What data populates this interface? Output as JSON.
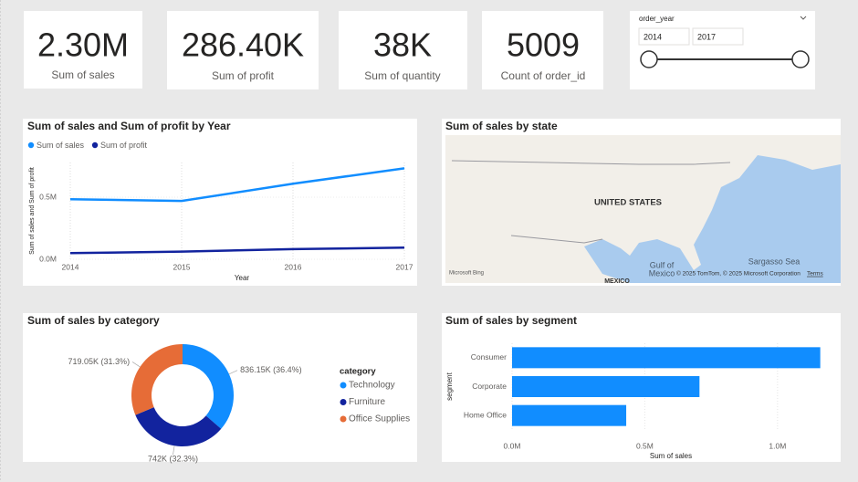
{
  "cards": [
    {
      "value": "2.30M",
      "label": "Sum of sales"
    },
    {
      "value": "286.40K",
      "label": "Sum of profit"
    },
    {
      "value": "38K",
      "label": "Sum of quantity"
    },
    {
      "value": "5009",
      "label": "Count of order_id"
    }
  ],
  "slicer": {
    "title": "order_year",
    "from": "2014",
    "to": "2017"
  },
  "map": {
    "title": "Sum of sales by state",
    "labels": [
      "UNITED STATES",
      "Gulf of",
      "Mexico",
      "Sargasso Sea",
      "MEXICO"
    ],
    "provider": "Microsoft Bing",
    "attribution": "© 2025 TomTom, © 2025 Microsoft Corporation",
    "terms": "Terms"
  },
  "chart_data": [
    {
      "type": "line",
      "title": "Sum of sales and Sum of profit by Year",
      "x": [
        2014,
        2015,
        2016,
        2017
      ],
      "series": [
        {
          "name": "Sum of sales",
          "color": "#118DFF",
          "values": [
            484000,
            470000,
            609000,
            733000
          ]
        },
        {
          "name": "Sum of profit",
          "color": "#12239E",
          "values": [
            49500,
            61600,
            81800,
            93400
          ]
        }
      ],
      "xlim": [
        2014,
        2017
      ],
      "xticks": [
        2014,
        2015,
        2016,
        2017
      ],
      "ylim": [
        0,
        780000
      ],
      "yticks": [
        {
          "value": 0,
          "label": "0.0M"
        },
        {
          "value": 500000,
          "label": "0.5M"
        }
      ],
      "xlabel": "Year",
      "ylabel": "Sum of sales and Sum of profit",
      "grid": true,
      "legend": "top"
    },
    {
      "type": "pie",
      "title": "Sum of sales by category",
      "categories": [
        "Technology",
        "Furniture",
        "Office Supplies"
      ],
      "values": [
        836150,
        742000,
        719050
      ],
      "value_labels": [
        "836.15K (36.4%)",
        "742K (32.3%)",
        "719.05K (31.3%)"
      ],
      "colors": [
        "#118DFF",
        "#12239E",
        "#E66C37"
      ],
      "legend_title": "category",
      "donut": true
    },
    {
      "type": "bar",
      "orientation": "horizontal",
      "title": "Sum of sales by segment",
      "categories": [
        "Consumer",
        "Corporate",
        "Home Office"
      ],
      "values": [
        1161000,
        706000,
        430000
      ],
      "color": "#118DFF",
      "xlim": [
        0,
        1200000
      ],
      "xticks": [
        {
          "value": 0,
          "label": "0.0M"
        },
        {
          "value": 500000,
          "label": "0.5M"
        },
        {
          "value": 1000000,
          "label": "1.0M"
        }
      ],
      "xlabel": "Sum of sales",
      "ylabel": "segment",
      "grid": true
    }
  ]
}
